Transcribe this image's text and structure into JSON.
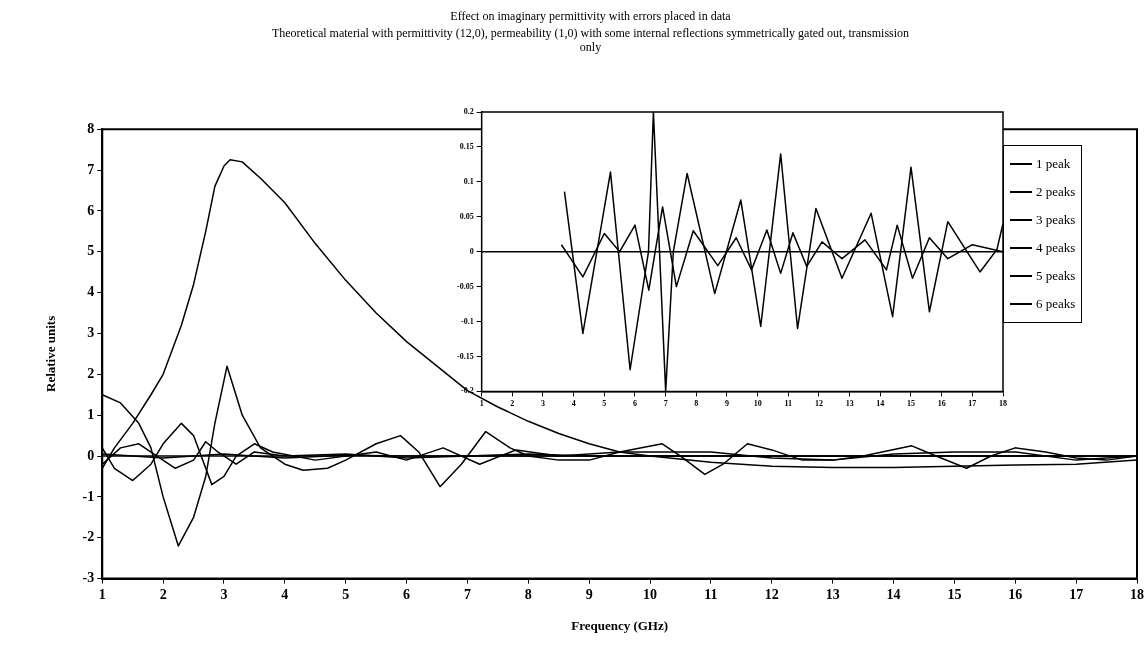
{
  "chart_data": [
    {
      "type": "line",
      "title": "Effect on imaginary permittivity with errors placed in data",
      "subtitle": "Theoretical material with permittivity (12,0), permeability (1,0) with some internal reflections symmetrically gated out, transmission only",
      "xlabel": "Frequency (GHz)",
      "ylabel": "Relative units",
      "xlim": [
        1,
        18
      ],
      "ylim": [
        -3,
        8
      ],
      "xticks": [
        1,
        2,
        3,
        4,
        5,
        6,
        7,
        8,
        9,
        10,
        11,
        12,
        13,
        14,
        15,
        16,
        17,
        18
      ],
      "yticks": [
        -3,
        -2,
        -1,
        0,
        1,
        2,
        3,
        4,
        5,
        6,
        7,
        8
      ],
      "grid": false,
      "legend": "top right",
      "marker": "none",
      "series": [
        {
          "name": "1 peak",
          "color": "#000000",
          "x": [
            1,
            18
          ],
          "values": [
            0,
            0
          ]
        },
        {
          "name": "2 peaks",
          "color": "#000000",
          "x": [
            1,
            2,
            3,
            4,
            5,
            6,
            8,
            10,
            12,
            14,
            16,
            18
          ],
          "values": [
            0.05,
            -0.05,
            0.05,
            -0.05,
            0.02,
            0,
            0,
            0,
            0,
            0,
            0,
            0
          ]
        },
        {
          "name": "3 peaks",
          "color": "#000000",
          "x": [
            1,
            1.3,
            1.6,
            1.9,
            2.2,
            2.5,
            2.7,
            2.9,
            3.2,
            3.5,
            4,
            5,
            6,
            7,
            8,
            9,
            10,
            12,
            14,
            16,
            18
          ],
          "values": [
            -0.2,
            0.2,
            0.3,
            0,
            -0.3,
            -0.1,
            0.35,
            0.1,
            -0.2,
            0.1,
            0,
            0.05,
            -0.05,
            0,
            0.05,
            0,
            0,
            0,
            0,
            0,
            0
          ]
        },
        {
          "name": "4 peaks",
          "color": "#000000",
          "x": [
            1,
            1.2,
            1.5,
            1.8,
            2,
            2.3,
            2.5,
            2.8,
            3,
            3.2,
            3.5,
            3.8,
            4.5,
            5.5,
            6,
            6.6,
            7.2,
            7.8,
            8.5,
            9.5,
            11,
            12,
            13,
            14,
            15,
            16,
            17,
            18
          ],
          "values": [
            0.2,
            -0.3,
            -0.6,
            -0.2,
            0.3,
            0.8,
            0.5,
            -0.7,
            -0.5,
            0,
            0.3,
            0.1,
            -0.1,
            0.1,
            -0.1,
            0.2,
            -0.2,
            0.15,
            0,
            0.1,
            0.1,
            -0.05,
            -0.1,
            0.05,
            0.1,
            0.1,
            -0.1,
            0
          ]
        },
        {
          "name": "5 peaks",
          "color": "#000000",
          "x": [
            1,
            1.3,
            1.6,
            1.8,
            2,
            2.25,
            2.5,
            2.7,
            2.85,
            3.05,
            3.3,
            3.6,
            4,
            4.3,
            4.7,
            5,
            5.5,
            5.9,
            6.2,
            6.55,
            6.9,
            7.3,
            7.7,
            8,
            8.5,
            9,
            9.5,
            10.2,
            10.5,
            10.9,
            11.2,
            11.6,
            12,
            12.5,
            13,
            13.5,
            14.3,
            14.7,
            15.2,
            15.6,
            16,
            16.5,
            17,
            17.5,
            18
          ],
          "values": [
            1.5,
            1.3,
            0.8,
            0.2,
            -1,
            -2.2,
            -1.5,
            -0.5,
            0.8,
            2.2,
            1,
            0.2,
            -0.2,
            -0.35,
            -0.3,
            -0.1,
            0.3,
            0.5,
            0.1,
            -0.75,
            -0.2,
            0.6,
            0.2,
            0,
            -0.1,
            -0.1,
            0.1,
            0.3,
            0,
            -0.45,
            -0.2,
            0.3,
            0.15,
            -0.1,
            -0.1,
            0,
            0.25,
            0,
            -0.3,
            0,
            0.2,
            0.1,
            -0.05,
            -0.1,
            0
          ]
        },
        {
          "name": "6 peaks",
          "color": "#000000",
          "x": [
            1,
            1.2,
            1.5,
            1.8,
            2,
            2.3,
            2.5,
            2.7,
            2.85,
            3,
            3.1,
            3.3,
            3.6,
            4,
            4.5,
            5,
            5.5,
            6,
            6.5,
            7,
            7.5,
            8,
            8.5,
            9,
            9.5,
            10,
            11,
            12,
            13,
            14,
            15,
            16,
            17,
            18
          ],
          "values": [
            -0.3,
            0.2,
            0.8,
            1.5,
            2,
            3.2,
            4.2,
            5.5,
            6.6,
            7.1,
            7.25,
            7.2,
            6.8,
            6.2,
            5.2,
            4.3,
            3.5,
            2.8,
            2.2,
            1.6,
            1.2,
            0.85,
            0.55,
            0.3,
            0.1,
            0,
            -0.15,
            -0.25,
            -0.28,
            -0.28,
            -0.25,
            -0.22,
            -0.2,
            -0.1
          ]
        }
      ]
    },
    {
      "type": "line",
      "xlim": [
        1,
        18
      ],
      "ylim": [
        -0.2,
        0.2
      ],
      "xticks": [
        1,
        2,
        3,
        4,
        5,
        6,
        7,
        8,
        9,
        10,
        11,
        12,
        13,
        14,
        15,
        16,
        17,
        18
      ],
      "yticks": [
        -0.2,
        -0.15,
        -0.1,
        -0.05,
        0,
        0.05,
        0.1,
        0.15,
        0.2
      ],
      "grid": false,
      "marker": "none",
      "series": [
        {
          "color": "#000000",
          "x": [
            1,
            18
          ],
          "values": [
            0,
            0
          ]
        },
        {
          "color": "#000000",
          "x": [
            3.6,
            4.3,
            5,
            5.5,
            6,
            6.45,
            6.9,
            7.35,
            7.9,
            8.7,
            9.3,
            9.8,
            10.3,
            10.75,
            11.15,
            11.6,
            12.1,
            12.75,
            13.5,
            14.2,
            14.55,
            15.05,
            15.6,
            16.2,
            17,
            18
          ],
          "values": [
            0.01,
            -0.036,
            0.026,
            0,
            0.038,
            -0.055,
            0.064,
            -0.05,
            0.03,
            -0.02,
            0.02,
            -0.026,
            0.031,
            -0.031,
            0.027,
            -0.021,
            0.014,
            -0.01,
            0.017,
            -0.026,
            0.038,
            -0.038,
            0.02,
            -0.01,
            0.01,
            0
          ]
        },
        {
          "color": "#000000",
          "x": [
            3.7,
            4.3,
            5.2,
            5.84,
            6.44,
            6.6,
            7,
            7.25,
            7.7,
            8.6,
            9.45,
            10.1,
            10.75,
            11.3,
            11.9,
            12.75,
            13.7,
            14.4,
            15,
            15.6,
            16.2,
            17.25,
            17.8,
            18
          ],
          "values": [
            0.086,
            -0.117,
            0.114,
            -0.169,
            0,
            0.2,
            -0.2,
            0,
            0.112,
            -0.06,
            0.074,
            -0.107,
            0.14,
            -0.11,
            0.062,
            -0.038,
            0.055,
            -0.093,
            0.121,
            -0.086,
            0.043,
            -0.029,
            0.003,
            0.04
          ]
        }
      ]
    }
  ]
}
